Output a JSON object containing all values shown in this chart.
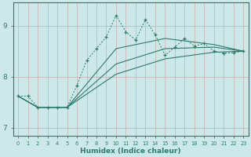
{
  "xlabel": "Humidex (Indice chaleur)",
  "bg_color": "#cce8e8",
  "grid_color": "#c8b8b8",
  "line_color": "#2e7b6e",
  "xlim": [
    -0.5,
    23.5
  ],
  "ylim": [
    6.85,
    9.45
  ],
  "yticks": [
    7,
    8,
    9
  ],
  "xticks": [
    0,
    1,
    2,
    3,
    4,
    5,
    6,
    7,
    8,
    9,
    10,
    11,
    12,
    13,
    14,
    15,
    16,
    17,
    18,
    19,
    20,
    21,
    22,
    23
  ],
  "main_series": {
    "x": [
      0,
      1,
      2,
      3,
      4,
      5,
      6,
      7,
      8,
      9,
      10,
      11,
      12,
      13,
      14,
      15,
      16,
      17,
      18,
      19,
      20,
      21,
      22,
      23
    ],
    "y": [
      7.62,
      7.62,
      7.4,
      7.4,
      7.4,
      7.4,
      7.83,
      8.32,
      8.55,
      8.78,
      9.2,
      8.88,
      8.72,
      9.12,
      8.82,
      8.42,
      8.58,
      8.75,
      8.6,
      8.65,
      8.5,
      8.46,
      8.47,
      8.5
    ]
  },
  "trend_lines": [
    {
      "x": [
        0,
        2,
        5,
        10,
        15,
        20,
        23
      ],
      "y": [
        7.62,
        7.4,
        7.4,
        8.05,
        8.35,
        8.48,
        8.5
      ]
    },
    {
      "x": [
        0,
        2,
        5,
        10,
        15,
        20,
        23
      ],
      "y": [
        7.62,
        7.4,
        7.4,
        8.25,
        8.55,
        8.58,
        8.5
      ]
    },
    {
      "x": [
        0,
        2,
        5,
        10,
        15,
        20,
        23
      ],
      "y": [
        7.62,
        7.4,
        7.4,
        8.55,
        8.75,
        8.63,
        8.5
      ]
    }
  ],
  "xlabel_fontsize": 6.5,
  "tick_fontsize": 6.0
}
